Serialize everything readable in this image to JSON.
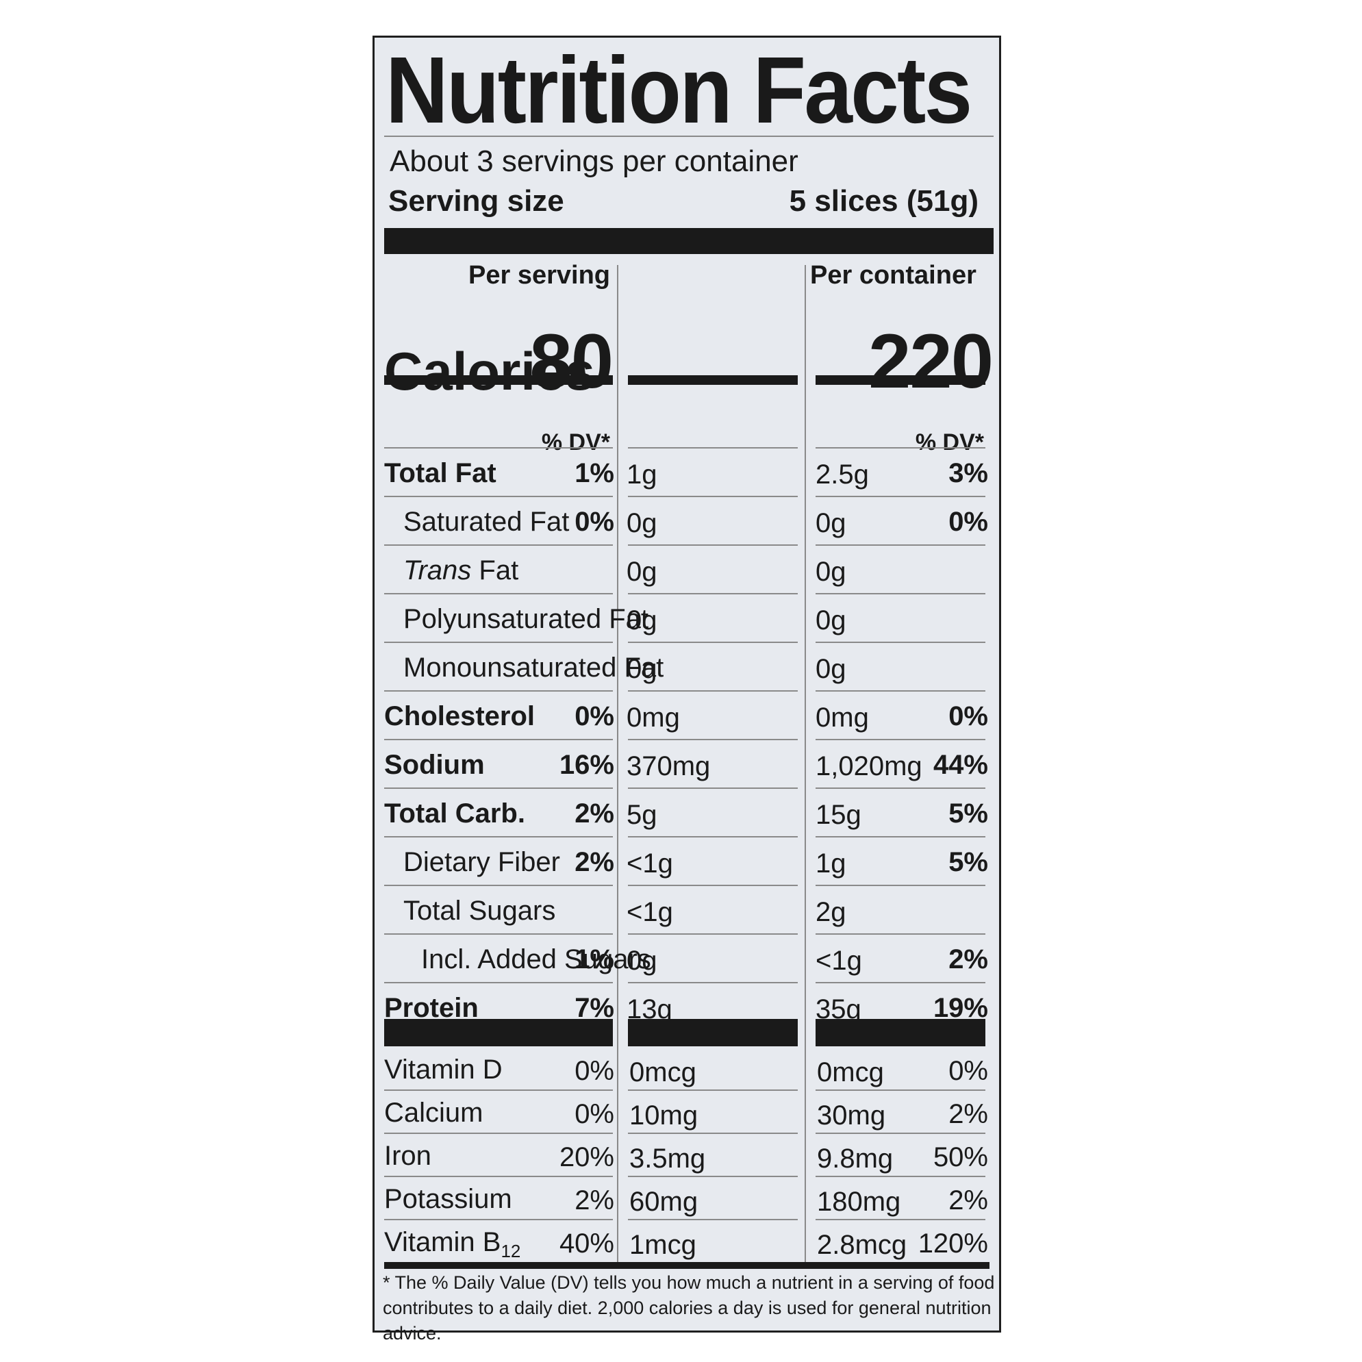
{
  "title": "Nutrition Facts",
  "servings_per_container": "About 3 servings per container",
  "serving_size_label": "Serving size",
  "serving_size_value": "5 slices (51g)",
  "column_headers": {
    "per_serving": "Per serving",
    "per_container": "Per container"
  },
  "calories": {
    "label": "Calories",
    "per_serving": "80",
    "per_container": "220"
  },
  "dv_header": "% DV*",
  "nutrients": [
    {
      "name": "Total Fat",
      "bold": true,
      "indent": 0,
      "serving_amount": "1g",
      "serving_dv": "1%",
      "container_amount": "2.5g",
      "container_dv": "3%"
    },
    {
      "name": "Saturated Fat",
      "bold": false,
      "indent": 1,
      "serving_amount": "0g",
      "serving_dv": "0%",
      "container_amount": "0g",
      "container_dv": "0%"
    },
    {
      "name_italic": "Trans",
      "name_rest": " Fat",
      "bold": false,
      "indent": 1,
      "serving_amount": "0g",
      "serving_dv": "",
      "container_amount": "0g",
      "container_dv": ""
    },
    {
      "name": "Polyunsaturated Fat",
      "bold": false,
      "indent": 1,
      "serving_amount": "0g",
      "serving_dv": "",
      "container_amount": "0g",
      "container_dv": ""
    },
    {
      "name": "Monounsaturated Fat",
      "bold": false,
      "indent": 1,
      "serving_amount": "0g",
      "serving_dv": "",
      "container_amount": "0g",
      "container_dv": ""
    },
    {
      "name": "Cholesterol",
      "bold": true,
      "indent": 0,
      "serving_amount": "0mg",
      "serving_dv": "0%",
      "container_amount": "0mg",
      "container_dv": "0%"
    },
    {
      "name": "Sodium",
      "bold": true,
      "indent": 0,
      "serving_amount": "370mg",
      "serving_dv": "16%",
      "container_amount": "1,020mg",
      "container_dv": "44%"
    },
    {
      "name": "Total Carb.",
      "bold": true,
      "indent": 0,
      "serving_amount": "5g",
      "serving_dv": "2%",
      "container_amount": "15g",
      "container_dv": "5%"
    },
    {
      "name": "Dietary Fiber",
      "bold": false,
      "indent": 1,
      "serving_amount": "<1g",
      "serving_dv": "2%",
      "container_amount": "1g",
      "container_dv": "5%"
    },
    {
      "name": "Total Sugars",
      "bold": false,
      "indent": 1,
      "serving_amount": "<1g",
      "serving_dv": "",
      "container_amount": "2g",
      "container_dv": ""
    },
    {
      "name": "Incl. Added Sugars",
      "bold": false,
      "indent": 2,
      "serving_amount": "0g",
      "serving_dv": "1%",
      "container_amount": "<1g",
      "container_dv": "2%"
    },
    {
      "name": "Protein",
      "bold": true,
      "indent": 0,
      "serving_amount": "13g",
      "serving_dv": "7%",
      "container_amount": "35g",
      "container_dv": "19%"
    }
  ],
  "vitamins": [
    {
      "name": "Vitamin D",
      "serving_amount": "0mcg",
      "serving_dv": "0%",
      "container_amount": "0mcg",
      "container_dv": "0%"
    },
    {
      "name": "Calcium",
      "serving_amount": "10mg",
      "serving_dv": "0%",
      "container_amount": "30mg",
      "container_dv": "2%"
    },
    {
      "name": "Iron",
      "serving_amount": "3.5mg",
      "serving_dv": "20%",
      "container_amount": "9.8mg",
      "container_dv": "50%"
    },
    {
      "name": "Potassium",
      "serving_amount": "60mg",
      "serving_dv": "2%",
      "container_amount": "180mg",
      "container_dv": "2%"
    },
    {
      "name": "Vitamin B",
      "name_sub": "12",
      "serving_amount": "1mcg",
      "serving_dv": "40%",
      "container_amount": "2.8mcg",
      "container_dv": "120%"
    }
  ],
  "footnote": "* The % Daily Value (DV) tells you how much a nutrient in a serving of food contributes to a daily diet. 2,000 calories a day is used for general nutrition advice."
}
